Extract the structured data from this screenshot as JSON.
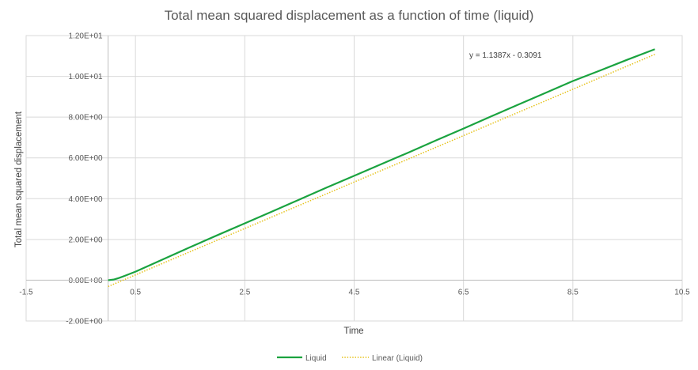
{
  "chart_data": {
    "type": "line",
    "title": "Total mean squared displacement as a function of time (liquid)",
    "xlabel": "Time",
    "ylabel": "Total mean squared displacement",
    "xlim": [
      -1.5,
      10.5
    ],
    "ylim": [
      -2,
      12
    ],
    "x_ticks": [
      -1.5,
      0.5,
      2.5,
      4.5,
      6.5,
      8.5,
      10.5
    ],
    "x_tick_labels": [
      "-1.5",
      "0.5",
      "2.5",
      "4.5",
      "6.5",
      "8.5",
      "10.5"
    ],
    "y_ticks": [
      -2,
      0,
      2,
      4,
      6,
      8,
      10,
      12
    ],
    "y_tick_labels": [
      "-2.00E+00",
      "0.00E+00",
      "2.00E+00",
      "4.00E+00",
      "6.00E+00",
      "8.00E+00",
      "1.00E+01",
      "1.20E+01"
    ],
    "grid": true,
    "legend_position": "bottom",
    "series": [
      {
        "name": "Liquid",
        "color": "#1aa33f",
        "style": "solid",
        "x": [
          0.0,
          0.1,
          0.2,
          0.3,
          0.5,
          0.75,
          1.0,
          1.5,
          2.0,
          2.5,
          3.0,
          3.5,
          4.0,
          4.5,
          5.0,
          5.5,
          6.0,
          6.5,
          7.0,
          7.5,
          8.0,
          8.5,
          9.0,
          9.5,
          10.0
        ],
        "y": [
          0.0,
          0.03,
          0.11,
          0.21,
          0.42,
          0.72,
          1.02,
          1.62,
          2.21,
          2.79,
          3.37,
          3.96,
          4.55,
          5.12,
          5.7,
          6.27,
          6.86,
          7.44,
          8.03,
          8.61,
          9.19,
          9.77,
          10.29,
          10.82,
          11.33
        ]
      },
      {
        "name": "Linear (Liquid)",
        "color": "#e6c21a",
        "style": "dotted",
        "trend": {
          "slope": 1.1387,
          "intercept": -0.3091
        },
        "x": [
          0.0,
          10.0
        ]
      }
    ],
    "annotations": [
      {
        "text": "y = 1.1387x - 0.3091"
      }
    ]
  }
}
